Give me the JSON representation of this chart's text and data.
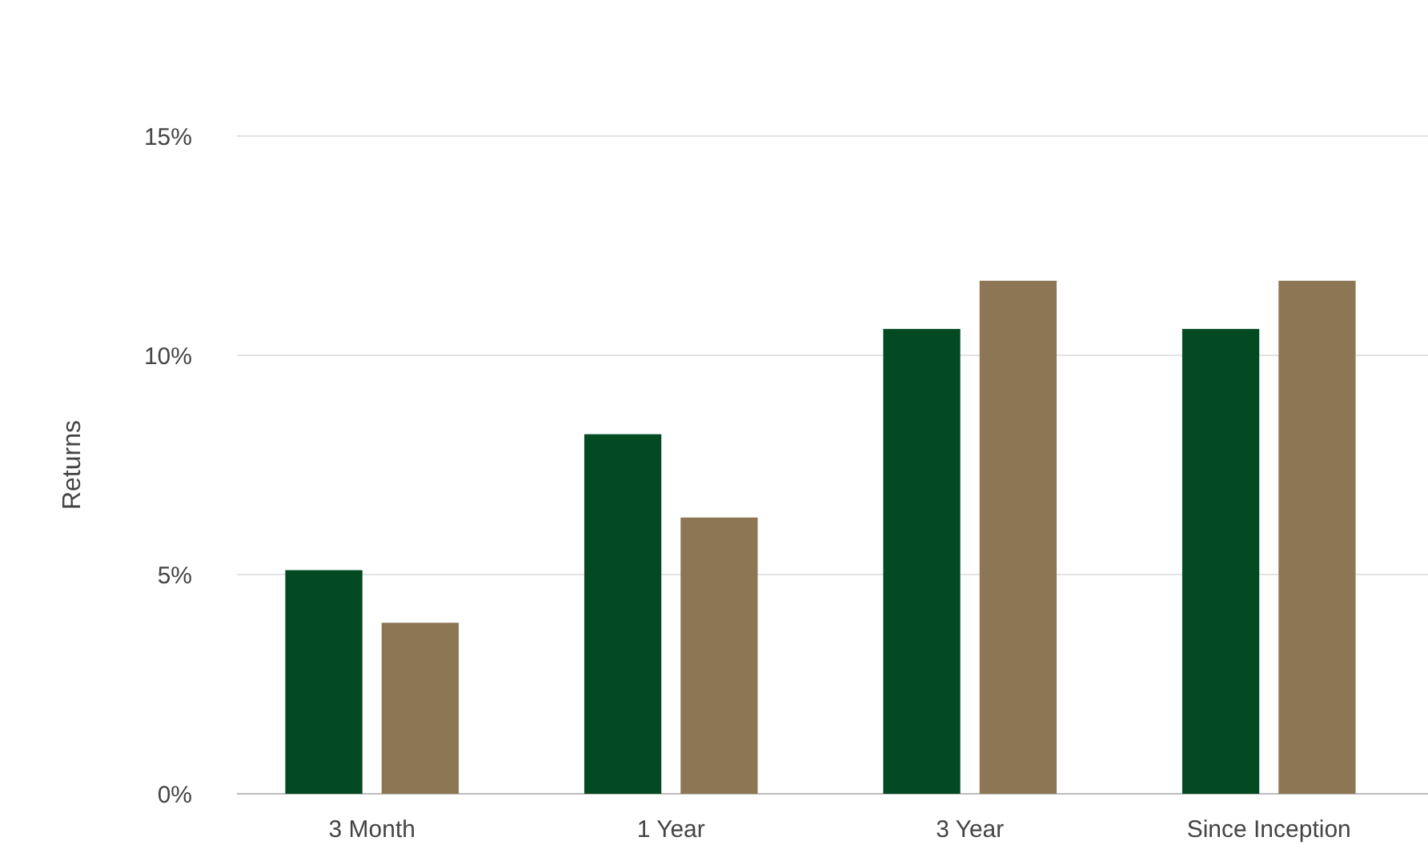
{
  "chart_data": {
    "type": "bar",
    "ylabel": "Returns",
    "categories": [
      "3 Month",
      "1 Year",
      "3 Year",
      "Since Inception"
    ],
    "series": [
      {
        "color": "#034a23",
        "values": [
          5.1,
          8.2,
          10.6,
          10.6
        ]
      },
      {
        "color": "#8c7654",
        "values": [
          3.9,
          6.3,
          11.7,
          11.7
        ]
      }
    ],
    "ylim": [
      0,
      15
    ],
    "yticks": [
      {
        "value": 0,
        "label": "0%"
      },
      {
        "value": 5,
        "label": "5%"
      },
      {
        "value": 10,
        "label": "10%"
      },
      {
        "value": 15,
        "label": "15%"
      }
    ],
    "grid": "y"
  }
}
